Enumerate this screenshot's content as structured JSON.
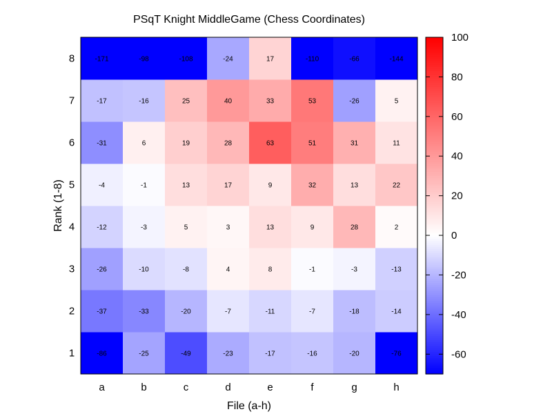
{
  "chart_data": {
    "type": "heatmap",
    "title": "PSqT Knight MiddleGame (Chess Coordinates)",
    "xlabel": "File (a-h)",
    "ylabel": "Rank (1-8)",
    "x_categories": [
      "a",
      "b",
      "c",
      "d",
      "e",
      "f",
      "g",
      "h"
    ],
    "y_categories": [
      "1",
      "2",
      "3",
      "4",
      "5",
      "6",
      "7",
      "8"
    ],
    "values": [
      [
        -86,
        -25,
        -49,
        -23,
        -17,
        -16,
        -20,
        -76
      ],
      [
        -37,
        -33,
        -20,
        -7,
        -11,
        -7,
        -18,
        -14
      ],
      [
        -26,
        -10,
        -8,
        4,
        8,
        -1,
        -3,
        -13
      ],
      [
        -12,
        -3,
        5,
        3,
        13,
        9,
        28,
        2
      ],
      [
        -4,
        -1,
        13,
        17,
        9,
        32,
        13,
        22
      ],
      [
        -31,
        6,
        19,
        28,
        63,
        51,
        31,
        11
      ],
      [
        -17,
        -16,
        25,
        40,
        33,
        53,
        -26,
        5
      ],
      [
        -171,
        -98,
        -108,
        -24,
        17,
        -110,
        -66,
        -144
      ]
    ],
    "value_labels": [
      [
        "-86",
        "-25",
        "-49",
        "-23",
        "-17",
        "-16",
        "-20",
        "-76"
      ],
      [
        "-37",
        "-33",
        "-20",
        "-7",
        "-11",
        "-7",
        "-18",
        "-14"
      ],
      [
        "-26",
        "-10",
        "-8",
        "4",
        "8",
        "-1",
        "-3",
        "-13"
      ],
      [
        "-12",
        "-3",
        "5",
        "3",
        "13",
        "9",
        "28",
        "2"
      ],
      [
        "-4",
        "-1",
        "13",
        "17",
        "9",
        "32",
        "13",
        "22"
      ],
      [
        "-31",
        "6",
        "19",
        "28",
        "63",
        "51",
        "31",
        "11"
      ],
      [
        "-17",
        "-16",
        "25",
        "40",
        "33",
        "53",
        "-26",
        "5"
      ],
      [
        "-171",
        "-98",
        "-108",
        "-24",
        "17",
        "-110",
        "-66",
        "-144"
      ]
    ],
    "colorbar": {
      "min": -70,
      "max": 100,
      "center": 0,
      "ticks": [
        -60,
        -40,
        -20,
        0,
        20,
        40,
        60,
        80,
        100
      ],
      "tick_labels": [
        "-60",
        "-40",
        "-20",
        "0",
        "20",
        "40",
        "60",
        "80",
        "100"
      ],
      "colors": {
        "low": "#0000ff",
        "mid": "#ffffff",
        "high": "#ff0000"
      }
    },
    "grid": false,
    "legend": "right"
  }
}
